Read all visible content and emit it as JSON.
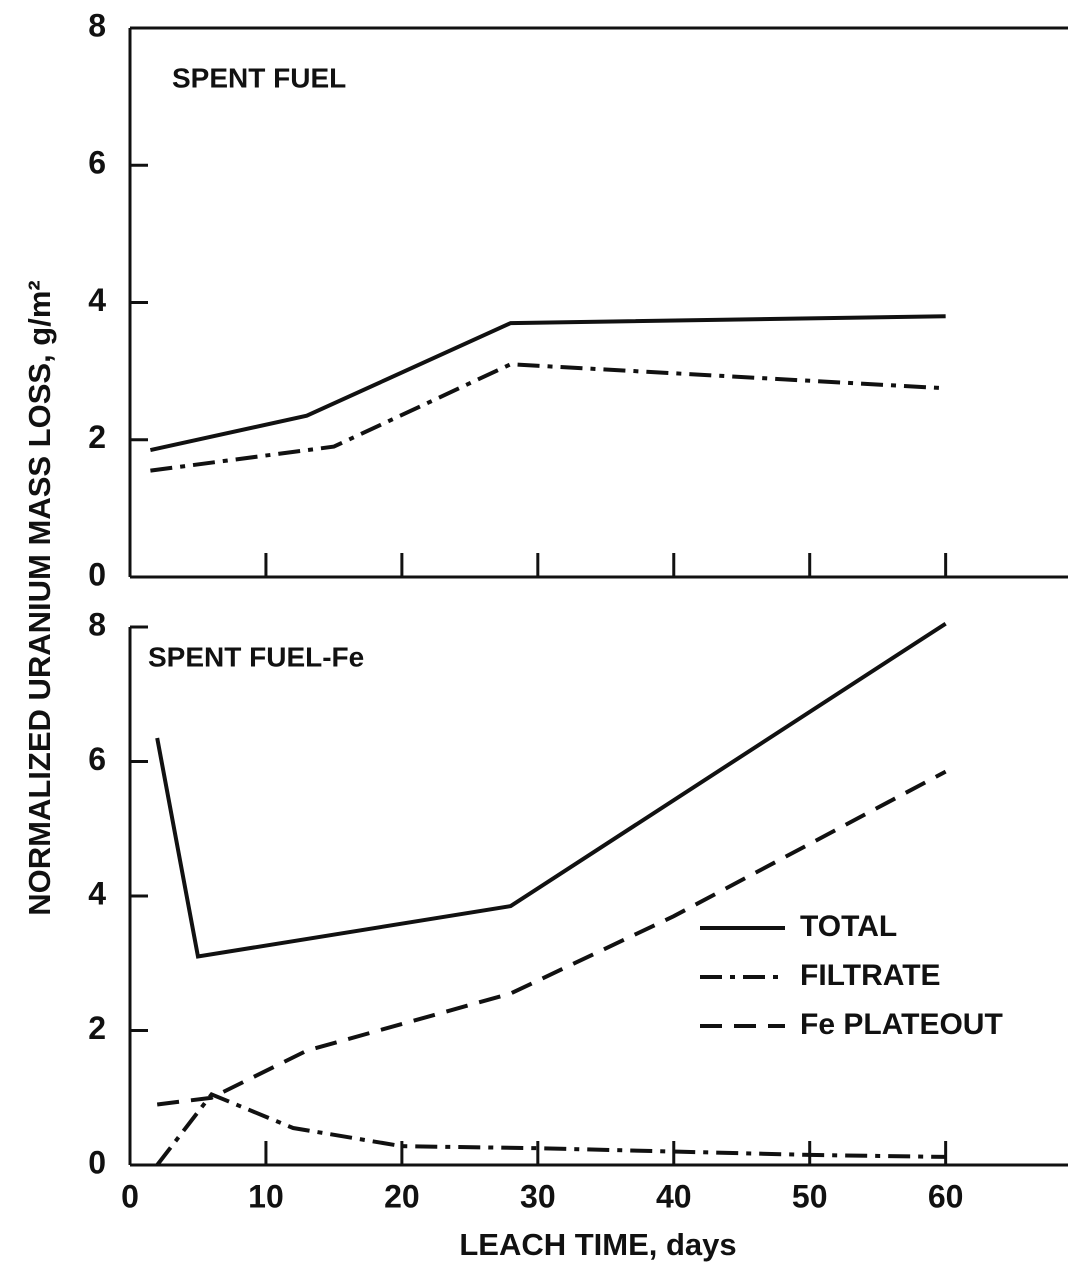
{
  "chart_data": [
    {
      "type": "line",
      "title": "SPENT FUEL",
      "ylabel": "NORMALIZED URANIUM MASS LOSS, g/m²",
      "xlim": [
        0,
        69
      ],
      "xticks": [
        0,
        10,
        20,
        30,
        40,
        50,
        60
      ],
      "show_xtick_labels": false,
      "ylim": [
        0,
        8
      ],
      "yticks": [
        0,
        2,
        4,
        6,
        8
      ],
      "series": [
        {
          "color": "#111111",
          "dash": "solid",
          "x": [
            1.5,
            13,
            28,
            60
          ],
          "values": [
            1.85,
            2.35,
            3.7,
            3.8
          ]
        },
        {
          "color": "#111111",
          "dash": "dashdot",
          "x": [
            1.5,
            15,
            28,
            60
          ],
          "values": [
            1.55,
            1.9,
            3.1,
            2.75
          ]
        }
      ]
    },
    {
      "type": "line",
      "title": "SPENT FUEL-Fe",
      "xlabel": "LEACH TIME, days",
      "xlim": [
        0,
        69
      ],
      "xticks": [
        0,
        10,
        20,
        30,
        40,
        50,
        60
      ],
      "ylim": [
        0,
        8
      ],
      "yticks": [
        0,
        2,
        4,
        6,
        8
      ],
      "legend": "lower right",
      "series": [
        {
          "name": "TOTAL",
          "color": "#111111",
          "dash": "solid",
          "x": [
            2,
            5,
            28,
            60
          ],
          "values": [
            6.35,
            3.1,
            3.85,
            8.05
          ]
        },
        {
          "name": "FILTRATE",
          "color": "#111111",
          "dash": "dashdot",
          "x": [
            2,
            6,
            12,
            20,
            30,
            50,
            60
          ],
          "values": [
            0,
            1.05,
            0.55,
            0.28,
            0.25,
            0.15,
            0.12
          ]
        },
        {
          "name": "Fe PLATEOUT",
          "color": "#111111",
          "dash": "dashed",
          "x": [
            2,
            6,
            13,
            28,
            40,
            60
          ],
          "values": [
            0.9,
            1.0,
            1.7,
            2.55,
            3.7,
            5.85
          ]
        }
      ]
    }
  ]
}
